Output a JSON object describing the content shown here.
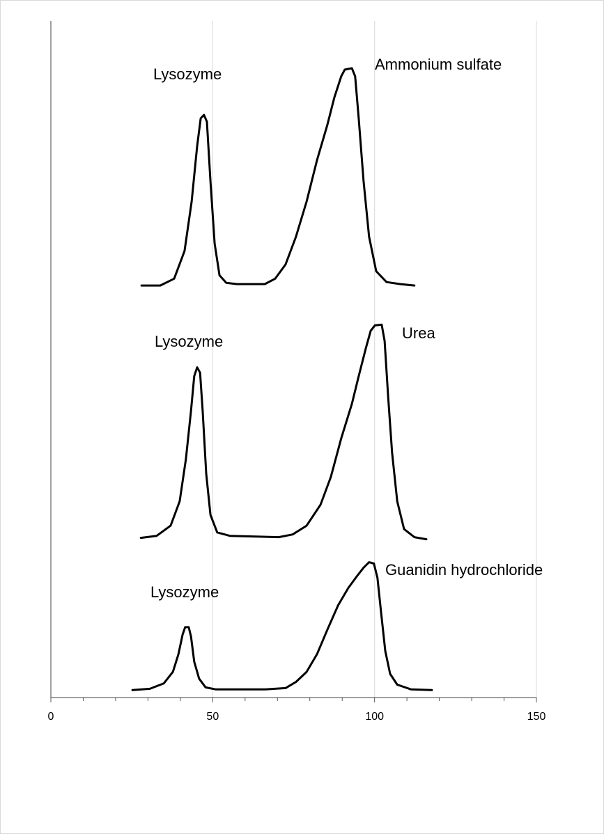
{
  "chart_data": {
    "type": "line",
    "xlim": [
      0,
      150
    ],
    "xticks": [
      0,
      50,
      100,
      150
    ],
    "xminor_ticks": [
      10,
      20,
      30,
      40,
      60,
      70,
      80,
      90,
      110,
      120,
      130,
      140
    ],
    "ylim": [
      0,
      100
    ],
    "grid": true,
    "annotations": [
      "Lysozyme",
      "Ammonium sulfate",
      "Lysozyme",
      "Urea",
      "Lysozyme",
      "Guanidin hydrochloride"
    ],
    "series": [
      {
        "color": "#000000",
        "x": [
          28.0,
          33.8,
          38.1,
          41.3,
          43.5,
          45.2,
          46.3,
          47.3,
          48.2,
          49.3,
          50.6,
          52.1,
          54.2,
          57.5,
          66.1,
          69.3,
          72.5,
          75.7,
          79.0,
          82.2,
          85.4,
          87.6,
          89.7,
          90.8,
          93.0,
          94.0,
          95.1,
          96.6,
          98.3,
          100.5,
          103.7,
          108.0,
          112.3
        ],
        "values": [
          60.9,
          60.9,
          61.9,
          66.0,
          73.3,
          81.5,
          85.6,
          86.1,
          85.1,
          76.3,
          67.1,
          62.4,
          61.3,
          61.1,
          61.1,
          61.9,
          64.0,
          68.1,
          73.3,
          79.4,
          84.6,
          88.7,
          91.8,
          92.8,
          93.0,
          91.8,
          85.6,
          76.3,
          68.1,
          63.0,
          61.4,
          61.1,
          60.9
        ]
      },
      {
        "color": "#000000",
        "x": [
          27.8,
          32.7,
          37.0,
          39.8,
          41.7,
          43.3,
          44.3,
          45.2,
          46.1,
          46.9,
          48.0,
          49.3,
          51.4,
          55.3,
          70.4,
          74.7,
          79.0,
          83.3,
          86.5,
          89.7,
          93.0,
          95.1,
          97.3,
          98.8,
          100.1,
          102.2,
          103.1,
          104.2,
          105.4,
          107.0,
          109.1,
          112.3,
          116.0
        ],
        "values": [
          23.6,
          23.9,
          25.4,
          29.0,
          35.2,
          42.4,
          47.5,
          48.8,
          48.0,
          42.4,
          33.1,
          27.0,
          24.4,
          23.9,
          23.7,
          24.1,
          25.4,
          28.5,
          32.6,
          38.3,
          43.4,
          47.5,
          51.6,
          54.2,
          55.0,
          55.1,
          52.7,
          44.4,
          36.2,
          29.0,
          24.9,
          23.7,
          23.4
        ]
      },
      {
        "color": "#000000",
        "x": [
          25.2,
          30.6,
          34.9,
          37.7,
          39.4,
          40.7,
          41.5,
          42.6,
          43.3,
          44.3,
          45.8,
          47.8,
          51.0,
          66.1,
          72.5,
          75.7,
          79.0,
          82.2,
          85.4,
          88.7,
          91.9,
          94.5,
          96.6,
          98.3,
          99.8,
          100.9,
          102.0,
          103.3,
          104.8,
          107.0,
          111.3,
          117.7
        ],
        "values": [
          1.1,
          1.3,
          2.1,
          3.8,
          6.4,
          9.3,
          10.4,
          10.4,
          9.0,
          5.3,
          2.8,
          1.5,
          1.2,
          1.2,
          1.4,
          2.3,
          3.8,
          6.4,
          10.0,
          13.6,
          16.2,
          17.9,
          19.2,
          20.0,
          19.8,
          17.7,
          12.6,
          6.9,
          3.5,
          1.9,
          1.2,
          1.1
        ]
      }
    ]
  }
}
